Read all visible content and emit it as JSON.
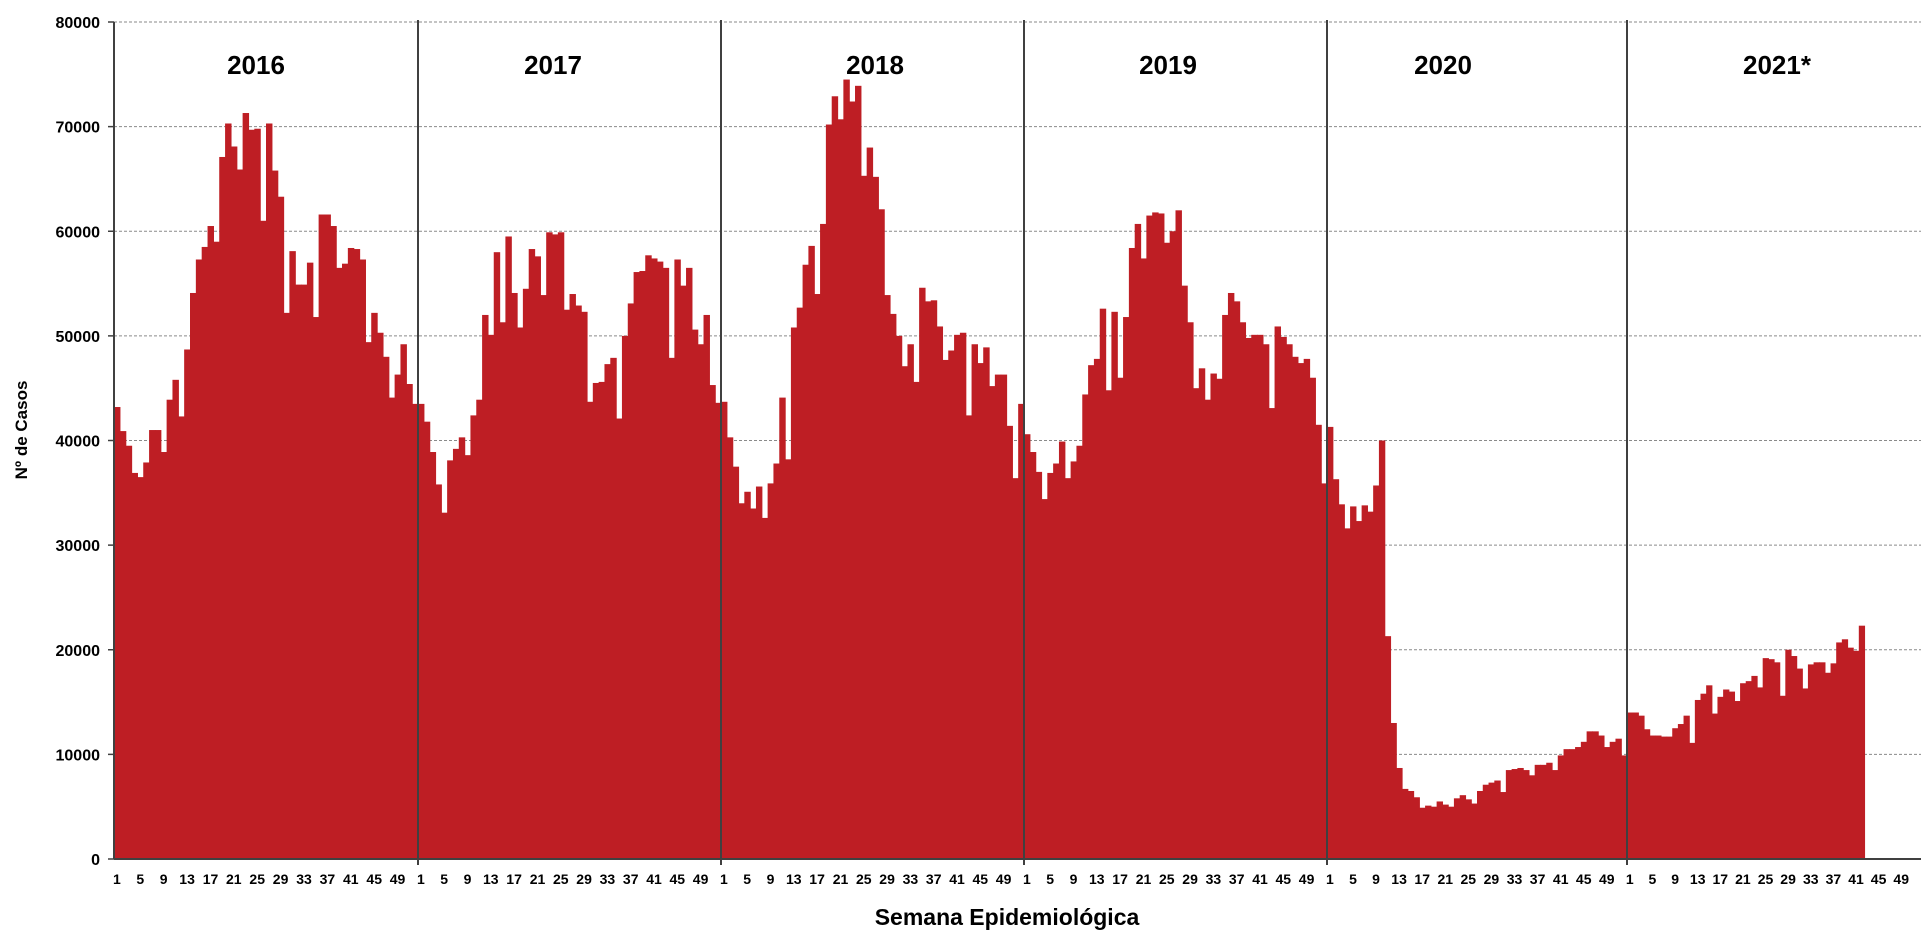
{
  "chart_data": {
    "type": "bar",
    "title": "",
    "xlabel": "Semana Epidemiológica",
    "ylabel": "Nº de Casos",
    "ylim": [
      0,
      80000
    ],
    "yticks": [
      0,
      10000,
      20000,
      30000,
      40000,
      50000,
      60000,
      70000,
      80000
    ],
    "grid": true,
    "bar_color": "#be1e24",
    "years": [
      {
        "label": "2016",
        "values": [
          43200,
          40900,
          39500,
          36900,
          36500,
          37900,
          41000,
          41000,
          38900,
          43900,
          45800,
          42300,
          48700,
          54100,
          57300,
          58500,
          60500,
          59000,
          67100,
          70300,
          68100,
          65900,
          71300,
          69700,
          69800,
          61000,
          70300,
          65800,
          63300,
          52200,
          58100,
          54900,
          54900,
          57000,
          51800,
          61600,
          61600,
          60500,
          56500,
          56900,
          58400,
          58300,
          57300,
          49400,
          52200,
          50300,
          48000,
          44100,
          46300,
          49200,
          45400,
          43500
        ],
        "xticks": [
          "1",
          "5",
          "9",
          "13",
          "17",
          "21",
          "25",
          "29",
          "33",
          "37",
          "41",
          "45",
          "49"
        ]
      },
      {
        "label": "2017",
        "values": [
          43500,
          41800,
          38900,
          35800,
          33100,
          38100,
          39200,
          40300,
          38600,
          42400,
          43900,
          52000,
          50100,
          58000,
          51300,
          59500,
          54100,
          50800,
          54500,
          58300,
          57600,
          53900,
          59900,
          59700,
          59900,
          52500,
          54000,
          52900,
          52300,
          43700,
          45500,
          45600,
          47300,
          47900,
          42100,
          50000,
          53100,
          56100,
          56200,
          57700,
          57400,
          57100,
          56500,
          47900,
          57300,
          54800,
          56500,
          50600,
          49200,
          52000,
          45300,
          43600
        ],
        "xticks": [
          "1",
          "5",
          "9",
          "13",
          "17",
          "21",
          "25",
          "29",
          "33",
          "37",
          "41",
          "45",
          "49"
        ]
      },
      {
        "label": "2018",
        "values": [
          43700,
          40300,
          37500,
          34000,
          35100,
          33500,
          35600,
          32600,
          35900,
          37800,
          44100,
          38200,
          50800,
          52700,
          56800,
          58600,
          54000,
          60700,
          70200,
          72900,
          70700,
          74500,
          72400,
          73900,
          65300,
          68000,
          65200,
          62100,
          53900,
          52100,
          50000,
          47100,
          49200,
          45600,
          54600,
          53300,
          53400,
          50900,
          47700,
          48600,
          50100,
          50300,
          42400,
          49200,
          47400,
          48900,
          45200,
          46300,
          46300,
          41400,
          36400,
          43500
        ],
        "xticks": [
          "1",
          "5",
          "9",
          "13",
          "17",
          "21",
          "25",
          "29",
          "33",
          "37",
          "41",
          "45",
          "49"
        ]
      },
      {
        "label": "2019",
        "values": [
          40600,
          38900,
          37000,
          34400,
          36900,
          37800,
          39900,
          36400,
          38000,
          39500,
          44400,
          47200,
          47800,
          52600,
          44800,
          52300,
          46000,
          51800,
          58400,
          60700,
          57400,
          61500,
          61800,
          61700,
          58900,
          60000,
          62000,
          54800,
          51300,
          45000,
          46900,
          43900,
          46400,
          45900,
          52000,
          54100,
          53300,
          51300,
          49800,
          50100,
          50100,
          49200,
          43100,
          50900,
          49900,
          49200,
          48000,
          47400,
          47800,
          46000,
          41500,
          35900
        ],
        "xticks": [
          "1",
          "5",
          "9",
          "13",
          "17",
          "21",
          "25",
          "29",
          "33",
          "37",
          "41",
          "45",
          "49"
        ]
      },
      {
        "label": "2020",
        "values": [
          41300,
          36300,
          33900,
          31600,
          33700,
          32300,
          33800,
          33200,
          35700,
          40000,
          21300,
          13000,
          8700,
          6700,
          6500,
          5900,
          4900,
          5100,
          5000,
          5500,
          5200,
          5000,
          5800,
          6100,
          5700,
          5300,
          6500,
          7100,
          7300,
          7500,
          6400,
          8500,
          8600,
          8700,
          8500,
          8000,
          9000,
          9000,
          9200,
          8500,
          9900,
          10500,
          10500,
          10700,
          11200,
          12200,
          12200,
          11800,
          10700,
          11200,
          11500,
          9900
        ],
        "xticks": [
          "1",
          "5",
          "9",
          "13",
          "17",
          "21",
          "25",
          "29",
          "33",
          "37",
          "41",
          "45",
          "49"
        ]
      },
      {
        "label": "2021*",
        "values": [
          14000,
          14000,
          13700,
          12400,
          11800,
          11800,
          11700,
          11700,
          12500,
          12900,
          13700,
          11100,
          15200,
          15800,
          16600,
          13900,
          15500,
          16200,
          16000,
          15100,
          16800,
          17000,
          17500,
          16400,
          19200,
          19100,
          18800,
          15600,
          20000,
          19400,
          18200,
          16300,
          18600,
          18800,
          18800,
          17800,
          18700,
          20700,
          21000,
          20200,
          19900,
          22300
        ],
        "xticks": [
          "1",
          "5",
          "9",
          "13",
          "17",
          "21",
          "25",
          "29",
          "33",
          "37",
          "41",
          "45",
          "49"
        ]
      }
    ]
  }
}
